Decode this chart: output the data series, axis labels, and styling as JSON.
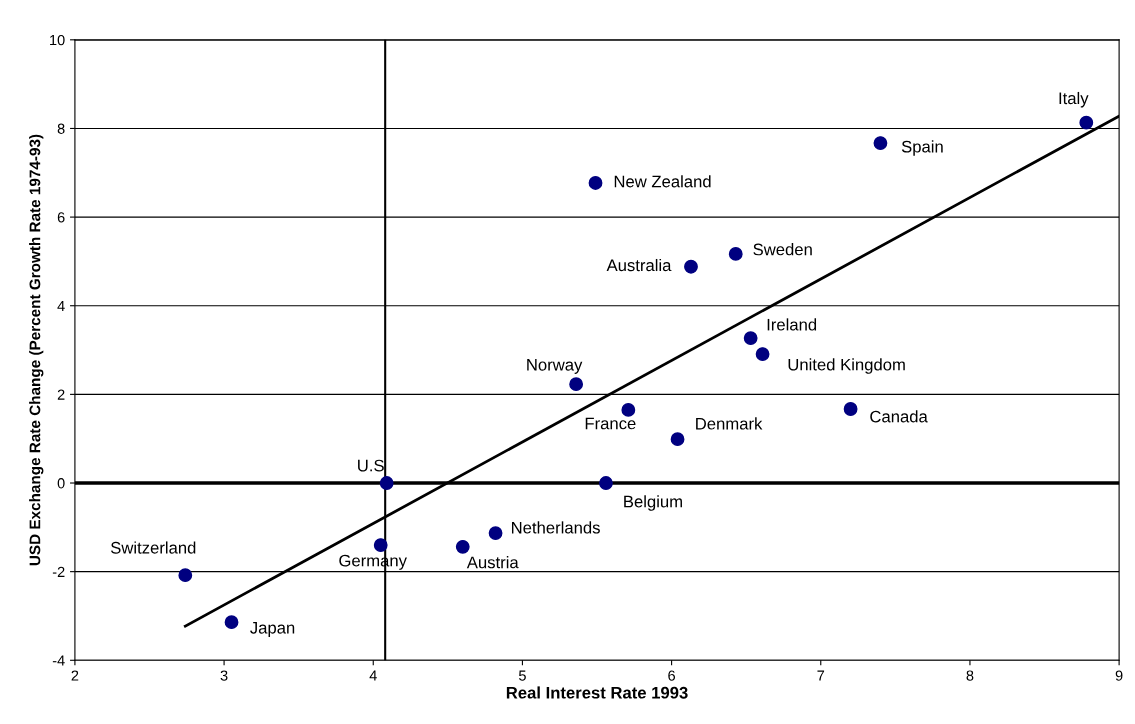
{
  "chart_data": {
    "type": "scatter",
    "xlabel": "Real Interest Rate 1993",
    "ylabel": "USD Exchange Rate Change (Percent Growth Rate 1974-93)",
    "xlim": [
      2,
      9
    ],
    "xticks": [
      2,
      3,
      4,
      5,
      6,
      7,
      8,
      9
    ],
    "ylim": [
      -4,
      10
    ],
    "yticks": [
      -4,
      -2,
      0,
      2,
      4,
      6,
      8,
      10
    ],
    "grid": "y",
    "series": [
      {
        "marker": "circle",
        "color": "#000080",
        "x": [
          8.78,
          7.4,
          5.49,
          6.13,
          6.43,
          6.53,
          6.61,
          5.36,
          5.71,
          6.04,
          7.2,
          4.09,
          5.56,
          4.82,
          4.6,
          4.05,
          2.74,
          3.05
        ],
        "values": [
          8.13,
          7.67,
          6.77,
          4.88,
          5.17,
          3.27,
          2.91,
          2.23,
          1.65,
          0.99,
          1.67,
          0,
          0,
          -1.13,
          -1.44,
          -1.4,
          -2.08,
          -3.14
        ]
      },
      {
        "type": "line",
        "marker": "none",
        "color": "#000000",
        "x": [
          2.74,
          9
        ],
        "values": [
          -3.23,
          8.28
        ]
      }
    ],
    "ref_lines": [
      {
        "axis": "x",
        "value": 4.08,
        "color": "#000000"
      },
      {
        "axis": "y",
        "value": 0,
        "color": "#000000"
      }
    ],
    "annotations": [
      {
        "text": "Italy",
        "x": 8.78,
        "y": 8.13
      },
      {
        "text": "Spain",
        "x": 7.4,
        "y": 7.67
      },
      {
        "text": "New Zealand",
        "x": 5.49,
        "y": 6.77
      },
      {
        "text": "Australia",
        "x": 6.13,
        "y": 4.88
      },
      {
        "text": "Sweden",
        "x": 6.43,
        "y": 5.17
      },
      {
        "text": "Ireland",
        "x": 6.53,
        "y": 3.27
      },
      {
        "text": "United Kingdom",
        "x": 6.61,
        "y": 2.91
      },
      {
        "text": "Norway",
        "x": 5.36,
        "y": 2.23
      },
      {
        "text": "France",
        "x": 5.71,
        "y": 1.65
      },
      {
        "text": "Denmark",
        "x": 6.04,
        "y": 0.99
      },
      {
        "text": "Canada",
        "x": 7.2,
        "y": 1.67
      },
      {
        "text": "U.S",
        "x": 4.09,
        "y": 0
      },
      {
        "text": "Belgium",
        "x": 5.56,
        "y": 0
      },
      {
        "text": "Netherlands",
        "x": 4.82,
        "y": -1.13
      },
      {
        "text": "Austria",
        "x": 4.6,
        "y": -1.44
      },
      {
        "text": "Germany",
        "x": 4.05,
        "y": -1.4
      },
      {
        "text": "Switzerland",
        "x": 2.74,
        "y": -2.08
      },
      {
        "text": "Japan",
        "x": 3.05,
        "y": -3.14
      }
    ]
  }
}
